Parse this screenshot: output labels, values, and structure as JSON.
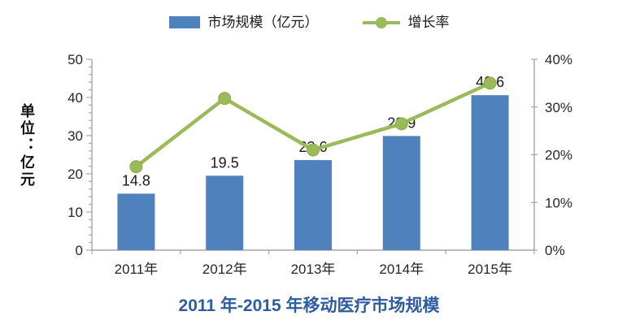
{
  "title": "2011 年-2015 年移动医疗市场规模",
  "left_axis_title": "单位：亿元",
  "colors": {
    "bar": "#4F81BD",
    "line": "#9BBB59",
    "line_marker_edge": "#8CA94C",
    "title": "#2E5C9E",
    "axis_line": "#A6A6A6",
    "tick_text": "#262626",
    "data_label": "#1a1a1a"
  },
  "chart_data": {
    "type": "bar",
    "subtype": "combo-bar-line",
    "title": "2011 年-2015 年移动医疗市场规模",
    "categories": [
      "2011年",
      "2012年",
      "2013年",
      "2014年",
      "2015年"
    ],
    "series": [
      {
        "name": "市场规模（亿元）",
        "type": "bar",
        "axis": "left",
        "values": [
          14.8,
          19.5,
          23.6,
          29.9,
          40.6
        ],
        "data_labels": [
          "14.8",
          "19.5",
          "23.6",
          "29.9",
          "40.6"
        ],
        "color": "#4F81BD"
      },
      {
        "name": "增长率",
        "type": "line",
        "axis": "right",
        "unit": "%",
        "estimated": true,
        "values": [
          17.5,
          31.8,
          21.0,
          26.5,
          35.0
        ],
        "color": "#9BBB59"
      }
    ],
    "left_axis": {
      "label": "单位：亿元",
      "min": 0,
      "max": 50,
      "tick_step": 10,
      "minor_tick_step": 2,
      "tick_labels": [
        "0",
        "10",
        "20",
        "30",
        "40",
        "50"
      ]
    },
    "right_axis": {
      "min": 0,
      "max": 40,
      "tick_step": 10,
      "tick_labels": [
        "0%",
        "10%",
        "20%",
        "30%",
        "40%"
      ]
    },
    "grid": false,
    "legend_position": "top"
  }
}
